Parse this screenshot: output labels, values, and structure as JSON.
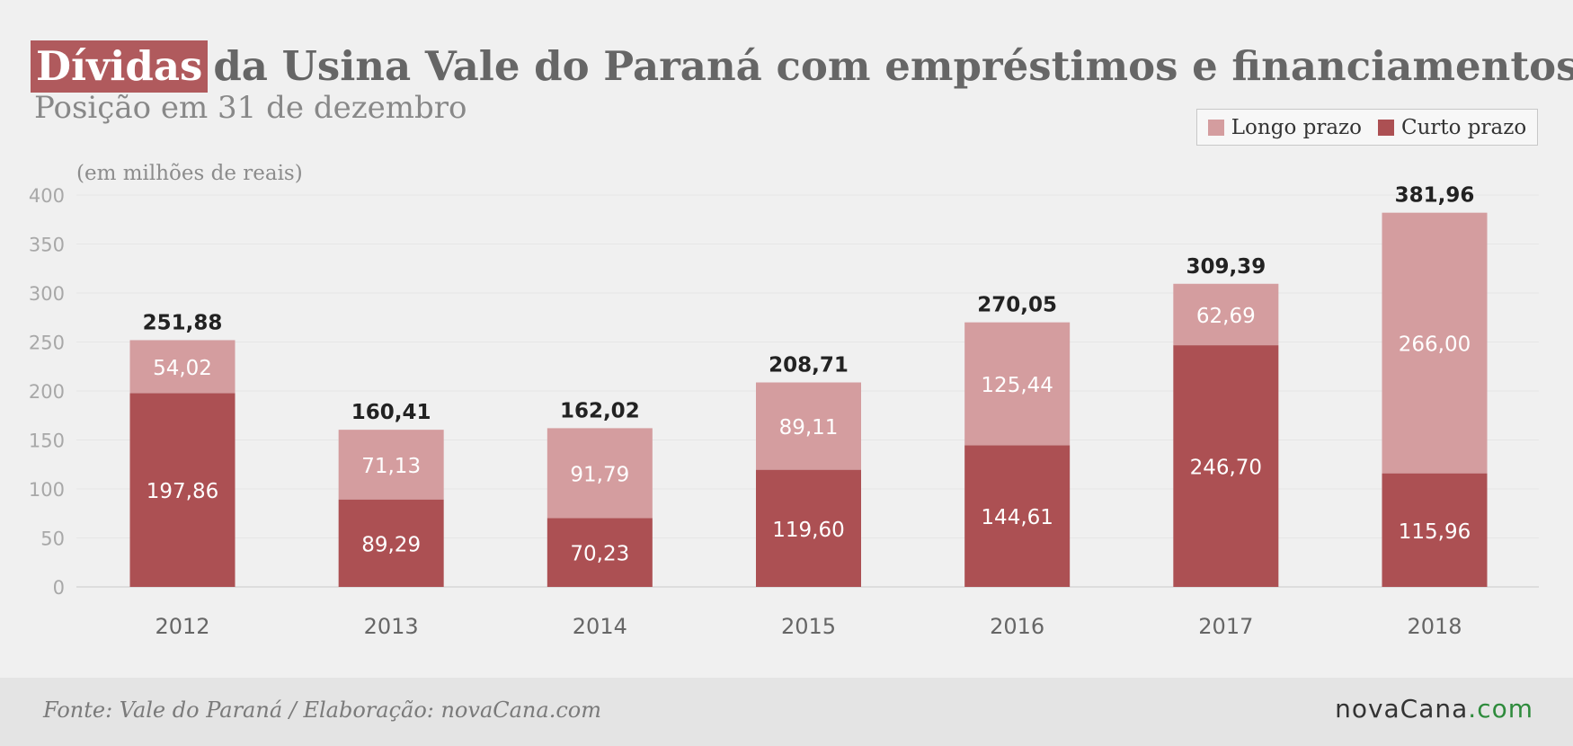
{
  "title": {
    "highlight": "Dívidas",
    "rest": "da Usina Vale do Paraná com empréstimos e financiamentos",
    "subtitle": "Posição em 31 de dezembro"
  },
  "unit_label": "(em milhões de reais)",
  "legend": [
    {
      "label": "Longo prazo",
      "color": "#d49d9f"
    },
    {
      "label": "Curto prazo",
      "color": "#ac5053"
    }
  ],
  "footer": {
    "source": "Fonte: Vale do Paraná / Elaboração: novaCana.com",
    "brand_main": "novaCana",
    "brand_tld": ".com"
  },
  "chart_data": {
    "type": "bar",
    "stacked": true,
    "categories": [
      "2012",
      "2013",
      "2014",
      "2015",
      "2016",
      "2017",
      "2018"
    ],
    "series": [
      {
        "name": "Curto prazo",
        "color": "#ac5053",
        "values": [
          197.86,
          89.29,
          70.23,
          119.6,
          144.61,
          246.7,
          115.96
        ],
        "labels": [
          "197,86",
          "89,29",
          "70,23",
          "119,60",
          "144,61",
          "246,70",
          "115,96"
        ]
      },
      {
        "name": "Longo prazo",
        "color": "#d49d9f",
        "values": [
          54.02,
          71.13,
          91.79,
          89.11,
          125.44,
          62.69,
          266.0
        ],
        "labels": [
          "54,02",
          "71,13",
          "91,79",
          "89,11",
          "125,44",
          "62,69",
          "266,00"
        ]
      }
    ],
    "totals": [
      251.88,
      160.41,
      162.02,
      208.71,
      270.05,
      309.39,
      381.96
    ],
    "total_labels": [
      "251,88",
      "160,41",
      "162,02",
      "208,71",
      "270,05",
      "309,39",
      "381,96"
    ],
    "ylim": [
      0,
      400
    ],
    "yticks": [
      0,
      50,
      100,
      150,
      200,
      250,
      300,
      350,
      400
    ],
    "grid": true,
    "legend_position": "top-right"
  }
}
